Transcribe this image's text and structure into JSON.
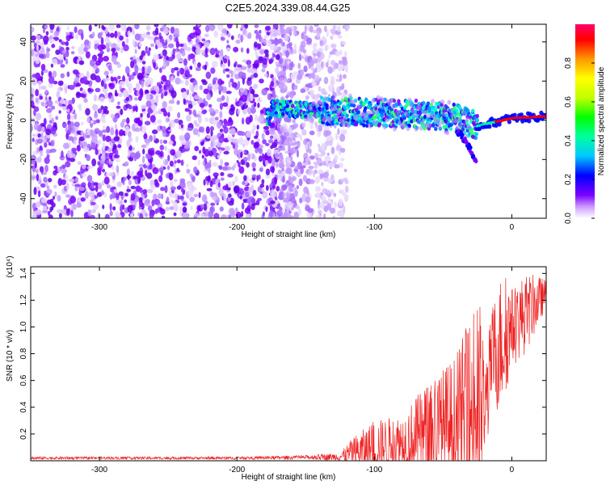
{
  "title": "C2E5.2024.339.08.44.G25",
  "chart_data": [
    {
      "type": "heatmap",
      "xlabel": "Height of straight line (km)",
      "ylabel": "Frequency (Hz)",
      "xlim": [
        -350,
        25
      ],
      "ylim": [
        -50,
        49
      ],
      "xticks": [
        -300,
        -200,
        -100,
        0
      ],
      "yticks": [
        -40,
        -20,
        0,
        20,
        40
      ],
      "colorbar": {
        "label": "Normalized spectral amplitude",
        "range": [
          0.0,
          1.0
        ],
        "ticks": [
          "0.0",
          "0.2",
          "0.4",
          "0.6",
          "0.8"
        ],
        "colormap": [
          "#ffffff",
          "#cc99ff",
          "#7a00ff",
          "#0000ff",
          "#00c8ff",
          "#00ffa0",
          "#00ff00",
          "#c0ff00",
          "#ffff00",
          "#ff9900",
          "#ff0000",
          "#ff0066"
        ]
      },
      "features": {
        "noise_region_km": [
          -350,
          -125
        ],
        "signal_track": [
          {
            "x": -175,
            "y": 6
          },
          {
            "x": -140,
            "y": 5
          },
          {
            "x": -100,
            "y": 4
          },
          {
            "x": -70,
            "y": 3
          },
          {
            "x": -40,
            "y": 1
          },
          {
            "x": -25,
            "y": -3
          },
          {
            "x": -20,
            "y": -2
          },
          {
            "x": 0,
            "y": 1
          },
          {
            "x": 25,
            "y": 2
          }
        ],
        "secondary_tail": [
          {
            "x": -40,
            "y": -5
          },
          {
            "x": -32,
            "y": -12
          },
          {
            "x": -26,
            "y": -22
          }
        ]
      }
    },
    {
      "type": "line",
      "xlabel": "Height of straight line (km)",
      "ylabel": "SNR (10 * v/v)",
      "yscale_label": "(x10⁴)",
      "xlim": [
        -350,
        25
      ],
      "ylim": [
        0,
        1.45
      ],
      "xticks": [
        -300,
        -200,
        -100,
        0
      ],
      "yticks": [
        0.2,
        0.4,
        0.6,
        0.8,
        1.0,
        1.2,
        1.4
      ],
      "series": [
        {
          "color": "#ee2222",
          "envelope_x": [
            -350,
            -300,
            -250,
            -200,
            -150,
            -125,
            -115,
            -100,
            -80,
            -60,
            -40,
            -30,
            -22,
            -20,
            -15,
            -10,
            -5,
            0,
            10,
            20,
            25
          ],
          "envelope_y_mean": [
            0.02,
            0.02,
            0.02,
            0.02,
            0.025,
            0.03,
            0.06,
            0.1,
            0.14,
            0.18,
            0.28,
            0.35,
            0.4,
            0.3,
            0.75,
            0.85,
            0.95,
            1.0,
            1.1,
            1.2,
            1.25
          ],
          "envelope_y_max": [
            0.03,
            0.03,
            0.03,
            0.03,
            0.04,
            0.06,
            0.18,
            0.3,
            0.35,
            0.6,
            0.8,
            1.1,
            1.2,
            0.7,
            1.1,
            1.35,
            1.45,
            1.3,
            1.4,
            1.38,
            1.35
          ]
        }
      ]
    }
  ]
}
